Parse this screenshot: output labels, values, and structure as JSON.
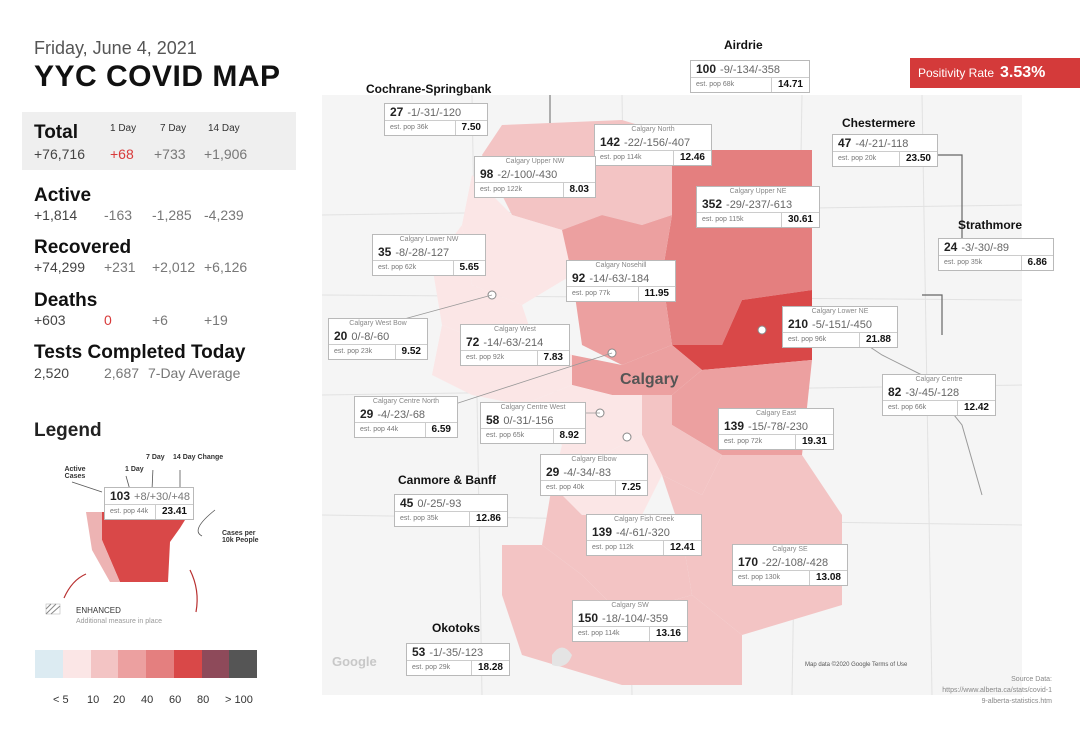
{
  "header": {
    "date": "Friday, June 4, 2021",
    "title": "YYC COVID MAP"
  },
  "stats": {
    "total": {
      "label": "Total",
      "value": "+76,716",
      "d1": "+68",
      "d7": "+733",
      "d14": "+1,906"
    },
    "col_1day": "1 Day",
    "col_7day": "7 Day",
    "col_14day": "14 Day",
    "active": {
      "label": "Active",
      "value": "+1,814",
      "d1": "-163",
      "d7": "-1,285",
      "d14": "-4,239"
    },
    "recovered": {
      "label": "Recovered",
      "value": "+74,299",
      "d1": "+231",
      "d7": "+2,012",
      "d14": "+6,126"
    },
    "deaths": {
      "label": "Deaths",
      "value": "+603",
      "d1": "0",
      "d7": "+6",
      "d14": "+19"
    },
    "tests": {
      "label": "Tests Completed Today",
      "value": "2,520",
      "avg": "2,687",
      "avg_label": "7-Day Average"
    }
  },
  "legend": {
    "title": "Legend",
    "active_cases": "Active Cases",
    "one_day": "1 Day",
    "seven_day": "7 Day",
    "fourteen_day": "14 Day Change",
    "example_active": "103",
    "example_changes": "+8/+30/+48",
    "example_pop": "est. pop 44k",
    "example_rate": "23.41",
    "cases_per": "Cases per 10k People",
    "enhanced": "ENHANCED",
    "enhanced_note": "Additional measure in place",
    "scale_colors": [
      "#dcebf2",
      "#fbe6e6",
      "#f3c4c4",
      "#eca0a0",
      "#e47f7f",
      "#d94848",
      "#8e4a5a",
      "#555555"
    ],
    "scale_labels": [
      "< 5",
      "10",
      "20",
      "40",
      "60",
      "80",
      "> 100"
    ]
  },
  "positivity": {
    "label": "Positivity Rate",
    "value": "3.53%"
  },
  "towns": {
    "airdrie": "Airdrie",
    "cochrane": "Cochrane-Springbank",
    "chestermere": "Chestermere",
    "strathmore": "Strathmore",
    "canmore": "Canmore & Banff",
    "okotoks": "Okotoks",
    "calgary": "Calgary"
  },
  "regions": [
    {
      "name": "",
      "active": "100",
      "changes": "-9/-134/-358",
      "pop": "est. pop 68k",
      "rate": "14.71"
    },
    {
      "name": "",
      "active": "27",
      "changes": "-1/-31/-120",
      "pop": "est. pop 36k",
      "rate": "7.50"
    },
    {
      "name": "Calgary North",
      "active": "142",
      "changes": "-22/-156/-407",
      "pop": "est. pop 114k",
      "rate": "12.46"
    },
    {
      "name": "",
      "active": "47",
      "changes": "-4/-21/-118",
      "pop": "est. pop 20k",
      "rate": "23.50"
    },
    {
      "name": "Calgary Upper NW",
      "active": "98",
      "changes": "-2/-100/-430",
      "pop": "est. pop 122k",
      "rate": "8.03"
    },
    {
      "name": "Calgary Upper NE",
      "active": "352",
      "changes": "-29/-237/-613",
      "pop": "est. pop 115k",
      "rate": "30.61"
    },
    {
      "name": "Calgary Lower NW",
      "active": "35",
      "changes": "-8/-28/-127",
      "pop": "est. pop 62k",
      "rate": "5.65"
    },
    {
      "name": "",
      "active": "24",
      "changes": "-3/-30/-89",
      "pop": "est. pop 35k",
      "rate": "6.86"
    },
    {
      "name": "Calgary Nosehill",
      "active": "92",
      "changes": "-14/-63/-184",
      "pop": "est. pop 77k",
      "rate": "11.95"
    },
    {
      "name": "Calgary West Bow",
      "active": "20",
      "changes": "0/-8/-60",
      "pop": "est. pop 23k",
      "rate": "9.52"
    },
    {
      "name": "Calgary West",
      "active": "72",
      "changes": "-14/-63/-214",
      "pop": "est. pop 92k",
      "rate": "7.83"
    },
    {
      "name": "Calgary Lower NE",
      "active": "210",
      "changes": "-5/-151/-450",
      "pop": "est. pop 96k",
      "rate": "21.88"
    },
    {
      "name": "Calgary Centre North",
      "active": "29",
      "changes": "-4/-23/-68",
      "pop": "est. pop 44k",
      "rate": "6.59"
    },
    {
      "name": "Calgary Centre West",
      "active": "58",
      "changes": "0/-31/-156",
      "pop": "est. pop 65k",
      "rate": "8.92"
    },
    {
      "name": "Calgary Centre",
      "active": "82",
      "changes": "-3/-45/-128",
      "pop": "est. pop 66k",
      "rate": "12.42"
    },
    {
      "name": "Calgary East",
      "active": "139",
      "changes": "-15/-78/-230",
      "pop": "est. pop 72k",
      "rate": "19.31"
    },
    {
      "name": "Calgary Elbow",
      "active": "29",
      "changes": "-4/-34/-83",
      "pop": "est. pop 40k",
      "rate": "7.25"
    },
    {
      "name": "",
      "active": "45",
      "changes": "0/-25/-93",
      "pop": "est. pop 35k",
      "rate": "12.86"
    },
    {
      "name": "Calgary Fish Creek",
      "active": "139",
      "changes": "-4/-61/-320",
      "pop": "est. pop 112k",
      "rate": "12.41"
    },
    {
      "name": "Calgary SE",
      "active": "170",
      "changes": "-22/-108/-428",
      "pop": "est. pop 130k",
      "rate": "13.08"
    },
    {
      "name": "Calgary SW",
      "active": "150",
      "changes": "-18/-104/-359",
      "pop": "est. pop 114k",
      "rate": "13.16"
    },
    {
      "name": "",
      "active": "53",
      "changes": "-1/-35/-123",
      "pop": "est. pop 29k",
      "rate": "18.28"
    }
  ],
  "source": {
    "label": "Source Data:",
    "url": "https://www.alberta.ca/stats/covid-19-alberta-statistics.htm"
  },
  "map_credit": "Map data ©2020 Google   Terms of Use",
  "google": "Google"
}
